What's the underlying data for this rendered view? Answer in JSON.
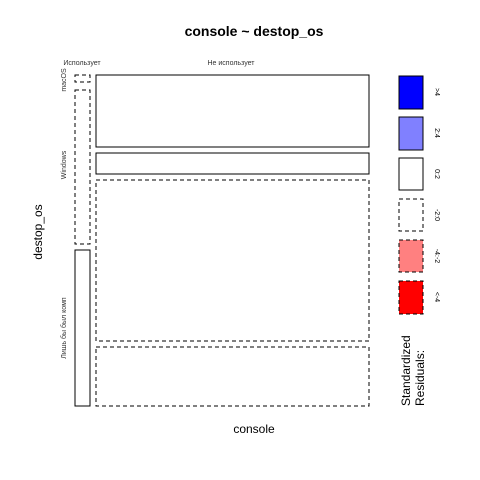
{
  "chart_data": {
    "type": "mosaic",
    "title": "console ~ destop_os",
    "xlabel": "console",
    "ylabel": "destop_os",
    "x_levels": [
      "Использует",
      "Не использует"
    ],
    "y_levels": [
      "macOS",
      "Windows",
      "Лишь бы был комп"
    ],
    "cells": [
      {
        "x": "Использует",
        "y": "macOS",
        "proportion": 0.01,
        "residual_class": "-2:0"
      },
      {
        "x": "Не использует",
        "y": "macOS",
        "proportion": 0.15,
        "residual_class": "0:2"
      },
      {
        "x": "Использует",
        "y": "Windows",
        "proportion": 0.02,
        "residual_class": "-2:0"
      },
      {
        "x": "Не использует",
        "y": "Windows",
        "proportion": 0.03,
        "residual_class": "0:2"
      },
      {
        "x": "Использует",
        "y": "Лишь бы был комп",
        "proportion": 0.03,
        "residual_class": "0:2"
      },
      {
        "x": "Не использует",
        "y": "Лишь бы был комп",
        "proportion": 0.76,
        "residual_class": "-2:0"
      }
    ],
    "legend": {
      "title_line1": "Standardized",
      "title_line2": "Residuals:",
      "entries": [
        {
          "label": ">4",
          "fill": "#0000ff",
          "dashed": false
        },
        {
          "label": "2:4",
          "fill": "#8080ff",
          "dashed": false
        },
        {
          "label": "0:2",
          "fill": "#ffffff",
          "dashed": false
        },
        {
          "label": "-2:0",
          "fill": "#ffffff",
          "dashed": true
        },
        {
          "label": "-4:-2",
          "fill": "#ff8080",
          "dashed": true
        },
        {
          "label": "<-4",
          "fill": "#ff0000",
          "dashed": true
        }
      ]
    }
  }
}
